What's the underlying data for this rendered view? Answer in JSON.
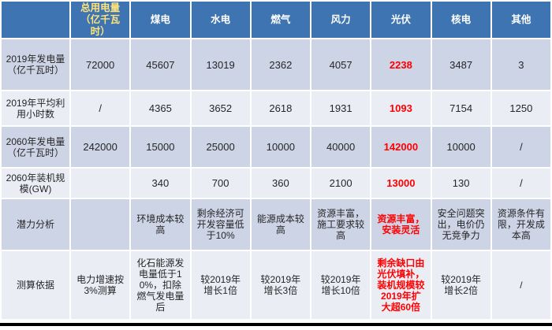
{
  "chart_data": {
    "type": "table",
    "title": "",
    "corner_label": "",
    "columns": [
      "总用电量（亿千瓦时）",
      "煤电",
      "水电",
      "燃气",
      "风力",
      "光伏",
      "核电",
      "其他"
    ],
    "rows": [
      {
        "label": "2019年发电量（亿千瓦时）",
        "cells": [
          "72000",
          "45607",
          "13019",
          "2362",
          "4057",
          "2238",
          "3487",
          "3"
        ]
      },
      {
        "label": "2019年平均利用小时数",
        "cells": [
          "/",
          "4365",
          "3652",
          "2618",
          "1931",
          "1093",
          "7154",
          "1250"
        ]
      },
      {
        "label": "2060年发电量（亿千瓦时）",
        "cells": [
          "242000",
          "15000",
          "25000",
          "10000",
          "40000",
          "142000",
          "10000",
          "/"
        ]
      },
      {
        "label": "2060年装机规模(GW)",
        "cells": [
          "",
          "340",
          "700",
          "360",
          "2100",
          "13000",
          "130",
          "/"
        ]
      },
      {
        "label": "潜力分析",
        "cells": [
          "",
          "环境成本较高",
          "剩余经济可开发容量低于10%",
          "能源成本较高",
          "资源丰富，施工要求较高",
          "资源丰富，安装灵活",
          "安全问题突出，电价仍无竞争力",
          "资源条件有限，开发成本高"
        ]
      },
      {
        "label": "测算依据",
        "cells": [
          "电力增速按3%测算",
          "化石能源发电量低于10%，扣除燃气发电量后",
          "较2019年增长1倍",
          "较2019年增长3倍",
          "较2019年增长10倍",
          "剩余缺口由光伏填补，装机规模较2019年扩大超60倍",
          "较2019年增长2倍",
          "/"
        ]
      }
    ],
    "highlighted_column": "光伏",
    "colors": {
      "header_bg": "#3E74B1",
      "header_text": "#FFFFFF",
      "first_header_text": "#FFE37B",
      "row_dark_bg": "#CDD4E6",
      "row_light_bg": "#EBEDF5",
      "highlight_text": "#FF0000",
      "body_text": "#262626",
      "bottom_rule": "#000000"
    }
  }
}
